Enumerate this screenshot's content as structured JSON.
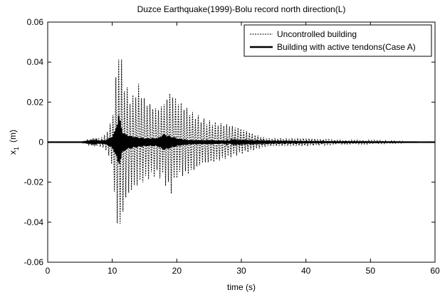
{
  "chart_data": {
    "type": "line",
    "title": "Duzce Earthquake(1999)-Bolu record north direction(L)",
    "xlabel": "time (s)",
    "ylabel": "x",
    "ylabel_subscript": "1",
    "ylabel_unit": "(m)",
    "xlim": [
      0,
      60
    ],
    "ylim": [
      -0.06,
      0.06
    ],
    "xticks": [
      0,
      10,
      20,
      30,
      40,
      50,
      60
    ],
    "yticks": [
      -0.06,
      -0.04,
      -0.02,
      0,
      0.02,
      0.04,
      0.06
    ],
    "xtick_labels": [
      "0",
      "10",
      "20",
      "30",
      "40",
      "50",
      "60"
    ],
    "ytick_labels": [
      "-0.06",
      "-0.04",
      "-0.02",
      "0",
      "0.02",
      "0.04",
      "0.06"
    ],
    "grid": false,
    "legend_position": "top-right",
    "series": [
      {
        "name": "Uncontrolled building",
        "style": "dashed",
        "color": "#000000",
        "envelope": {
          "t": [
            0,
            5,
            6,
            7,
            8,
            9,
            10,
            10.5,
            11,
            11.5,
            12,
            13,
            14,
            15,
            16,
            17,
            18,
            19,
            20,
            22,
            24,
            26,
            28,
            30,
            32,
            34,
            36,
            38,
            40,
            45,
            50,
            55,
            56,
            60
          ],
          "pos": [
            0,
            0,
            0.001,
            0.002,
            0.002,
            0.004,
            0.012,
            0.03,
            0.051,
            0.04,
            0.03,
            0.022,
            0.03,
            0.022,
            0.019,
            0.017,
            0.02,
            0.026,
            0.022,
            0.016,
            0.012,
            0.01,
            0.009,
            0.007,
            0.004,
            0.002,
            0.002,
            0.002,
            0.002,
            0.001,
            0.001,
            0.0005,
            0,
            0
          ],
          "neg": [
            0,
            0,
            -0.001,
            -0.002,
            -0.002,
            -0.004,
            -0.012,
            -0.035,
            -0.048,
            -0.04,
            -0.03,
            -0.025,
            -0.022,
            -0.02,
            -0.018,
            -0.017,
            -0.02,
            -0.027,
            -0.018,
            -0.016,
            -0.011,
            -0.01,
            -0.008,
            -0.006,
            -0.004,
            -0.002,
            -0.002,
            -0.002,
            -0.002,
            -0.001,
            -0.001,
            -0.0005,
            0,
            0
          ]
        }
      },
      {
        "name": "Building with active tendons(Case A)",
        "style": "solid",
        "color": "#000000",
        "envelope": {
          "t": [
            0,
            5,
            7,
            9,
            10,
            10.5,
            11,
            11.5,
            12,
            13,
            15,
            17,
            18,
            19,
            20,
            22,
            25,
            30,
            35,
            40,
            60
          ],
          "pos": [
            0,
            0,
            0.0005,
            0.001,
            0.003,
            0.006,
            0.014,
            0.006,
            0.004,
            0.003,
            0.002,
            0.002,
            0.004,
            0.003,
            0.002,
            0.001,
            0.001,
            0.0005,
            0.0003,
            0.0002,
            0
          ],
          "neg": [
            0,
            0,
            -0.0005,
            -0.001,
            -0.003,
            -0.006,
            -0.012,
            -0.006,
            -0.004,
            -0.003,
            -0.002,
            -0.002,
            -0.004,
            -0.003,
            -0.002,
            -0.001,
            -0.001,
            -0.0005,
            -0.0003,
            -0.0002,
            0
          ]
        }
      }
    ]
  }
}
